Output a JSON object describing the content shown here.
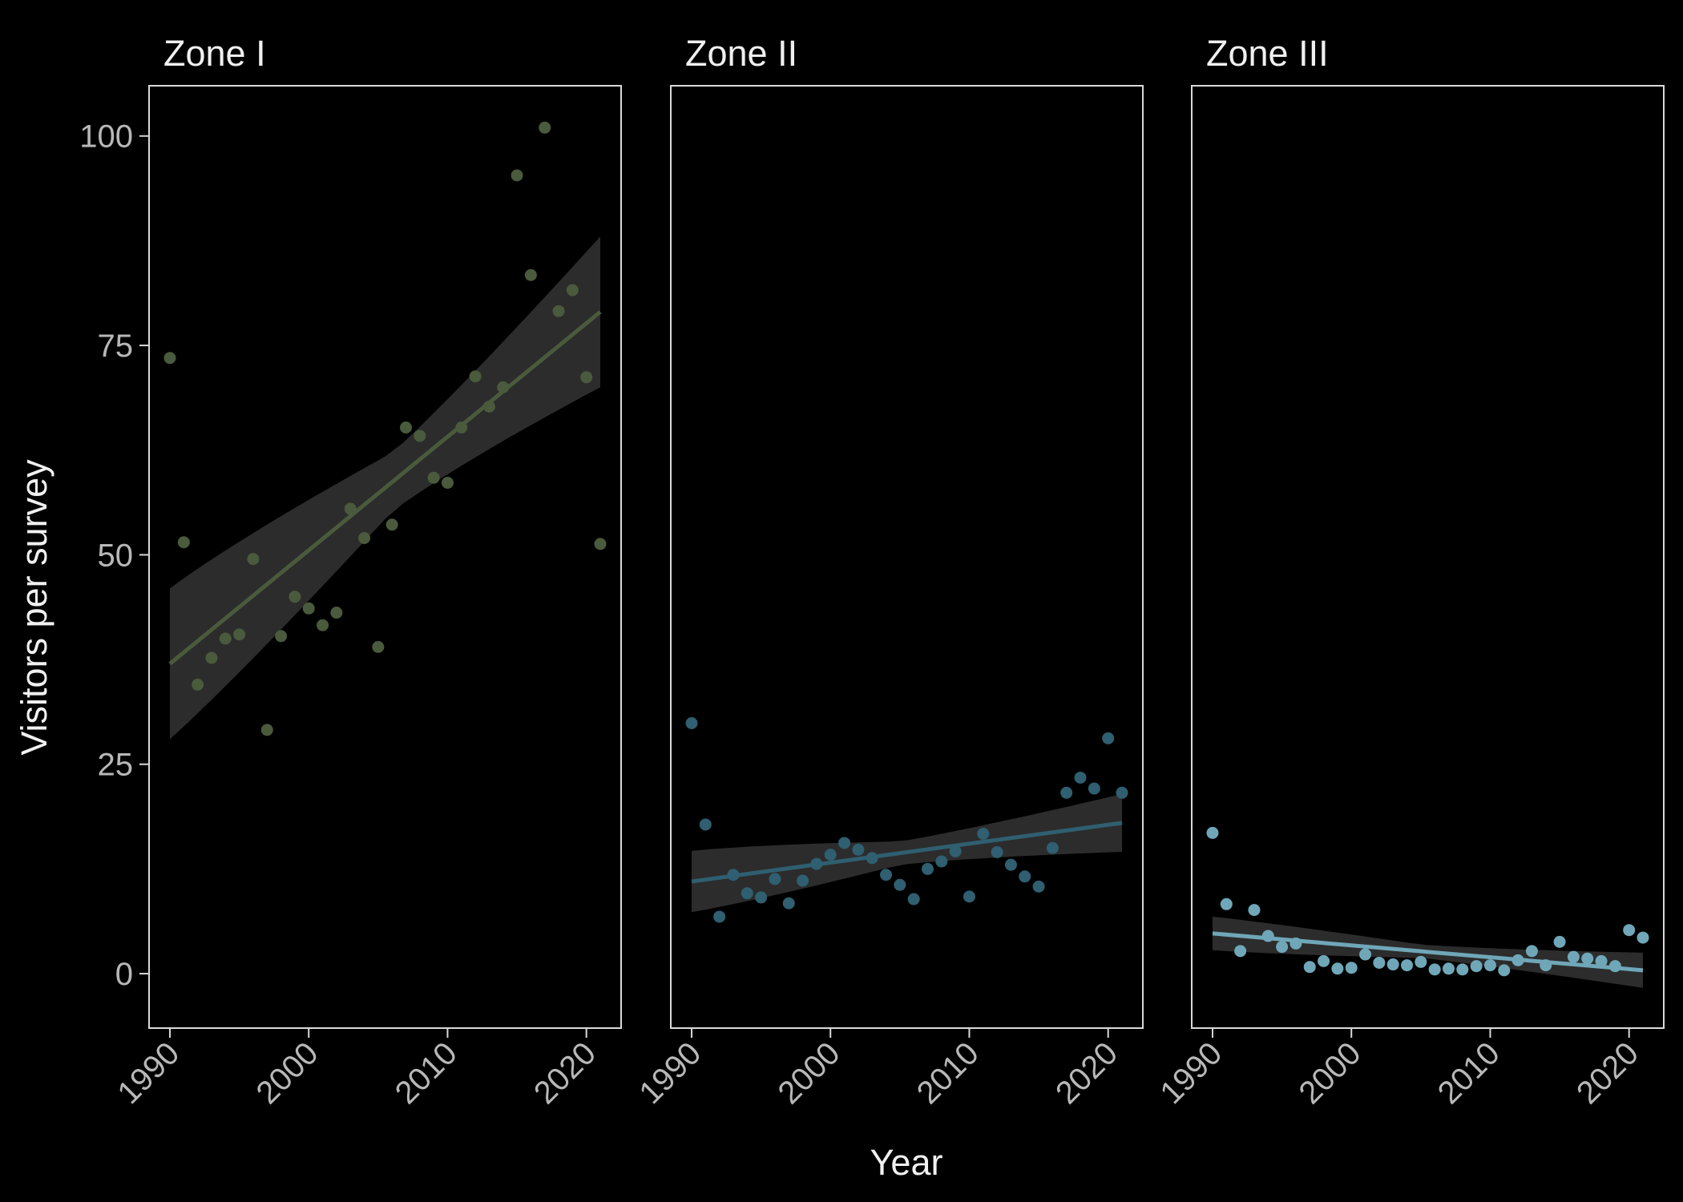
{
  "chart_data": {
    "type": "scatter",
    "ylabel": "Visitors per survey",
    "xlabel": "Year",
    "ylim": [
      -6.5,
      106
    ],
    "xlim": [
      1988.5,
      2022.5
    ],
    "y_ticks": [
      0,
      25,
      50,
      75,
      100
    ],
    "x_ticks": [
      1990,
      2000,
      2010,
      2020
    ],
    "grid": false,
    "legend": "none",
    "trend": "linear fit with confidence band",
    "panels": [
      {
        "title": "Zone I",
        "color": "#4a5a3c",
        "fit": {
          "y_start": 37,
          "y_end": 79,
          "lo_start": 28,
          "hi_start": 46,
          "lo_end": 70,
          "hi_end": 88,
          "mid_x": 2006,
          "mid_halfwidth": 3.5
        },
        "points": [
          {
            "x": 1990,
            "y": 73.5
          },
          {
            "x": 1991,
            "y": 51.5
          },
          {
            "x": 1992,
            "y": 34.5
          },
          {
            "x": 1993,
            "y": 37.7
          },
          {
            "x": 1994,
            "y": 40
          },
          {
            "x": 1995,
            "y": 40.5
          },
          {
            "x": 1996,
            "y": 49.5
          },
          {
            "x": 1997,
            "y": 29.1
          },
          {
            "x": 1998,
            "y": 40.3
          },
          {
            "x": 1999,
            "y": 45
          },
          {
            "x": 2000,
            "y": 43.6
          },
          {
            "x": 2001,
            "y": 41.6
          },
          {
            "x": 2002,
            "y": 43.1
          },
          {
            "x": 2003,
            "y": 55.5
          },
          {
            "x": 2004,
            "y": 52
          },
          {
            "x": 2005,
            "y": 39
          },
          {
            "x": 2006,
            "y": 53.6
          },
          {
            "x": 2007,
            "y": 65.2
          },
          {
            "x": 2008,
            "y": 64.2
          },
          {
            "x": 2009,
            "y": 59.2
          },
          {
            "x": 2010,
            "y": 58.6
          },
          {
            "x": 2011,
            "y": 65.2
          },
          {
            "x": 2012,
            "y": 71.3
          },
          {
            "x": 2013,
            "y": 67.7
          },
          {
            "x": 2014,
            "y": 70
          },
          {
            "x": 2015,
            "y": 95.3
          },
          {
            "x": 2016,
            "y": 83.4
          },
          {
            "x": 2017,
            "y": 101
          },
          {
            "x": 2018,
            "y": 79.1
          },
          {
            "x": 2019,
            "y": 81.6
          },
          {
            "x": 2020,
            "y": 71.2
          },
          {
            "x": 2021,
            "y": 51.3
          }
        ]
      },
      {
        "title": "Zone II",
        "color": "#2f5f70",
        "fit": {
          "y_start": 11,
          "y_end": 18,
          "lo_start": 7.5,
          "hi_start": 14.8,
          "lo_end": 14.3,
          "hi_end": 21.2,
          "mid_x": 2005,
          "mid_halfwidth": 1.4
        },
        "points": [
          {
            "x": 1990,
            "y": 29.9
          },
          {
            "x": 1991,
            "y": 17.8
          },
          {
            "x": 1992,
            "y": 6.8
          },
          {
            "x": 1993,
            "y": 11.8
          },
          {
            "x": 1994,
            "y": 9.6
          },
          {
            "x": 1995,
            "y": 9.1
          },
          {
            "x": 1996,
            "y": 11.3
          },
          {
            "x": 1997,
            "y": 8.4
          },
          {
            "x": 1998,
            "y": 11.1
          },
          {
            "x": 1999,
            "y": 13.1
          },
          {
            "x": 2000,
            "y": 14.2
          },
          {
            "x": 2001,
            "y": 15.6
          },
          {
            "x": 2002,
            "y": 14.8
          },
          {
            "x": 2003,
            "y": 13.8
          },
          {
            "x": 2004,
            "y": 11.8
          },
          {
            "x": 2005,
            "y": 10.6
          },
          {
            "x": 2006,
            "y": 8.9
          },
          {
            "x": 2007,
            "y": 12.5
          },
          {
            "x": 2008,
            "y": 13.4
          },
          {
            "x": 2009,
            "y": 14.6
          },
          {
            "x": 2010,
            "y": 9.2
          },
          {
            "x": 2011,
            "y": 16.7
          },
          {
            "x": 2012,
            "y": 14.5
          },
          {
            "x": 2013,
            "y": 13
          },
          {
            "x": 2014,
            "y": 11.6
          },
          {
            "x": 2015,
            "y": 10.4
          },
          {
            "x": 2016,
            "y": 15
          },
          {
            "x": 2017,
            "y": 21.6
          },
          {
            "x": 2018,
            "y": 23.4
          },
          {
            "x": 2019,
            "y": 22.1
          },
          {
            "x": 2020,
            "y": 28.1
          },
          {
            "x": 2021,
            "y": 21.6
          }
        ]
      },
      {
        "title": "Zone III",
        "color": "#6fa7b8",
        "fit": {
          "y_start": 4.8,
          "y_end": 0.4,
          "lo_start": 2.7,
          "hi_start": 6.7,
          "lo_end": -1.7,
          "hi_end": 2.5,
          "mid_x": 2005,
          "mid_halfwidth": 0.8
        },
        "points": [
          {
            "x": 1990,
            "y": 16.8
          },
          {
            "x": 1991,
            "y": 8.3
          },
          {
            "x": 1992,
            "y": 2.7
          },
          {
            "x": 1993,
            "y": 7.6
          },
          {
            "x": 1994,
            "y": 4.5
          },
          {
            "x": 1995,
            "y": 3.2
          },
          {
            "x": 1996,
            "y": 3.6
          },
          {
            "x": 1997,
            "y": 0.8
          },
          {
            "x": 1998,
            "y": 1.5
          },
          {
            "x": 1999,
            "y": 0.6
          },
          {
            "x": 2000,
            "y": 0.7
          },
          {
            "x": 2001,
            "y": 2.3
          },
          {
            "x": 2002,
            "y": 1.3
          },
          {
            "x": 2003,
            "y": 1.1
          },
          {
            "x": 2004,
            "y": 1
          },
          {
            "x": 2005,
            "y": 1.4
          },
          {
            "x": 2006,
            "y": 0.5
          },
          {
            "x": 2007,
            "y": 0.6
          },
          {
            "x": 2008,
            "y": 0.5
          },
          {
            "x": 2009,
            "y": 0.9
          },
          {
            "x": 2010,
            "y": 1
          },
          {
            "x": 2011,
            "y": 0.4
          },
          {
            "x": 2012,
            "y": 1.6
          },
          {
            "x": 2013,
            "y": 2.7
          },
          {
            "x": 2014,
            "y": 1
          },
          {
            "x": 2015,
            "y": 3.8
          },
          {
            "x": 2016,
            "y": 2
          },
          {
            "x": 2017,
            "y": 1.8
          },
          {
            "x": 2018,
            "y": 1.5
          },
          {
            "x": 2019,
            "y": 0.9
          },
          {
            "x": 2020,
            "y": 5.2
          },
          {
            "x": 2021,
            "y": 4.3
          }
        ]
      }
    ]
  }
}
